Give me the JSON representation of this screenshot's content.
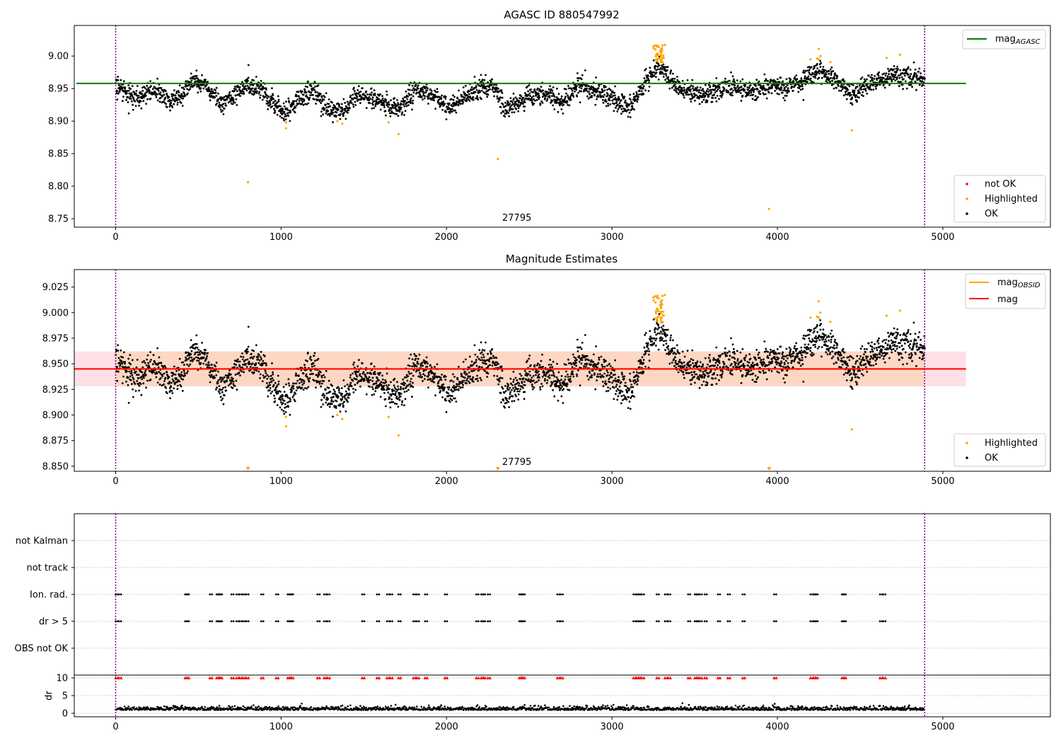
{
  "colors": {
    "ok": "#000000",
    "highlighted": "#ffa500",
    "not_ok": "#ff0000",
    "mag_agasc": "#008000",
    "mag_obsid": "#ffa500",
    "mag": "#ff0000",
    "band_outer": "#ffe0e6",
    "band_inner": "#fdd7c3",
    "obs_boundary": "#800080"
  },
  "chart_data": [
    {
      "type": "scatter",
      "title": "AGASC ID 880547992",
      "xlim": [
        -250,
        5650
      ],
      "ylim": [
        8.737,
        9.047
      ],
      "xticks": [
        0,
        1000,
        2000,
        3000,
        4000,
        5000
      ],
      "xtick_labels": [
        "0",
        "1000",
        "2000",
        "3000",
        "4000",
        "5000"
      ],
      "yticks": [
        8.75,
        8.8,
        8.85,
        8.9,
        8.95,
        9.0
      ],
      "ytick_labels": [
        "8.75",
        "8.80",
        "8.85",
        "8.90",
        "8.95",
        "9.00"
      ],
      "mag_agasc": 8.958,
      "obs_boundaries": [
        0,
        4890
      ],
      "obsid_annotation": {
        "text": "27795",
        "x": 2350,
        "y": 8.745
      },
      "legend_top": [
        {
          "label": "mag",
          "sub": "AGASC",
          "color": "#008000"
        }
      ],
      "legend_bottom": [
        {
          "label": "not OK",
          "color": "#ff0000"
        },
        {
          "label": "Highlighted",
          "color": "#ffa500"
        },
        {
          "label": "OK",
          "color": "#000000"
        }
      ],
      "trend": [
        [
          0,
          8.955
        ],
        [
          60,
          8.945
        ],
        [
          150,
          8.935
        ],
        [
          230,
          8.95
        ],
        [
          320,
          8.93
        ],
        [
          400,
          8.94
        ],
        [
          480,
          8.962
        ],
        [
          560,
          8.95
        ],
        [
          640,
          8.928
        ],
        [
          720,
          8.94
        ],
        [
          800,
          8.957
        ],
        [
          880,
          8.945
        ],
        [
          960,
          8.928
        ],
        [
          1020,
          8.91
        ],
        [
          1100,
          8.932
        ],
        [
          1200,
          8.948
        ],
        [
          1280,
          8.92
        ],
        [
          1380,
          8.915
        ],
        [
          1450,
          8.94
        ],
        [
          1560,
          8.935
        ],
        [
          1640,
          8.925
        ],
        [
          1720,
          8.918
        ],
        [
          1820,
          8.95
        ],
        [
          1920,
          8.94
        ],
        [
          2000,
          8.92
        ],
        [
          2080,
          8.932
        ],
        [
          2200,
          8.948
        ],
        [
          2280,
          8.96
        ],
        [
          2350,
          8.918
        ],
        [
          2420,
          8.925
        ],
        [
          2500,
          8.94
        ],
        [
          2600,
          8.94
        ],
        [
          2700,
          8.928
        ],
        [
          2800,
          8.955
        ],
        [
          2900,
          8.945
        ],
        [
          3000,
          8.938
        ],
        [
          3100,
          8.92
        ],
        [
          3200,
          8.958
        ],
        [
          3280,
          8.985
        ],
        [
          3350,
          8.965
        ],
        [
          3450,
          8.945
        ],
        [
          3550,
          8.94
        ],
        [
          3650,
          8.95
        ],
        [
          3750,
          8.952
        ],
        [
          3850,
          8.948
        ],
        [
          3950,
          8.955
        ],
        [
          4050,
          8.95
        ],
        [
          4150,
          8.962
        ],
        [
          4250,
          8.978
        ],
        [
          4350,
          8.965
        ],
        [
          4450,
          8.94
        ],
        [
          4550,
          8.955
        ],
        [
          4700,
          8.97
        ],
        [
          4890,
          8.965
        ]
      ],
      "highlighted_cluster": {
        "x": [
          3250,
          3320
        ],
        "y": [
          8.99,
          9.018
        ]
      },
      "highlighted_points": [
        [
          800,
          8.806
        ],
        [
          1030,
          8.898
        ],
        [
          1030,
          8.889
        ],
        [
          1340,
          8.9
        ],
        [
          1370,
          8.896
        ],
        [
          1650,
          8.898
        ],
        [
          1710,
          8.88
        ],
        [
          2310,
          8.842
        ],
        [
          3950,
          8.765
        ],
        [
          4200,
          8.995
        ],
        [
          4240,
          8.996
        ],
        [
          4250,
          9.011
        ],
        [
          4260,
          9.0
        ],
        [
          4250,
          8.995
        ],
        [
          4320,
          8.991
        ],
        [
          4450,
          8.886
        ],
        [
          4660,
          8.997
        ],
        [
          4740,
          9.002
        ]
      ]
    },
    {
      "type": "scatter",
      "title": "Magnitude Estimates",
      "xlim": [
        -250,
        5650
      ],
      "ylim": [
        8.845,
        9.042
      ],
      "xticks": [
        0,
        1000,
        2000,
        3000,
        4000,
        5000
      ],
      "xtick_labels": [
        "0",
        "1000",
        "2000",
        "3000",
        "4000",
        "5000"
      ],
      "yticks": [
        8.85,
        8.875,
        8.9,
        8.925,
        8.95,
        8.975,
        9.0,
        9.025
      ],
      "ytick_labels": [
        "8.850",
        "8.875",
        "8.900",
        "8.925",
        "8.950",
        "8.975",
        "9.000",
        "9.025"
      ],
      "mag": 8.945,
      "mag_band": [
        8.928,
        8.962
      ],
      "mag_obsid": 8.945,
      "obs_boundaries": [
        0,
        4890
      ],
      "obsid_annotation": {
        "text": "27795",
        "x": 2350,
        "y": 8.849
      },
      "clipped_markers_x": [
        800,
        2310,
        3950
      ],
      "legend_top": [
        {
          "label": "mag",
          "sub": "OBSID",
          "color": "#ffa500"
        },
        {
          "label": "mag",
          "sub": "",
          "color": "#ff0000"
        }
      ],
      "legend_bottom": [
        {
          "label": "Highlighted",
          "color": "#ffa500"
        },
        {
          "label": "OK",
          "color": "#000000"
        }
      ]
    },
    {
      "type": "scatter",
      "title": "",
      "xlim": [
        -250,
        5650
      ],
      "flag_rows": [
        "not Kalman",
        "not track",
        "Ion. rad.",
        "dr > 5",
        "OBS not OK"
      ],
      "flag_x": [
        0,
        20,
        420,
        430,
        570,
        610,
        620,
        630,
        700,
        730,
        750,
        770,
        790,
        880,
        970,
        1040,
        1050,
        1060,
        1220,
        1260,
        1280,
        1490,
        1580,
        1640,
        1660,
        1710,
        1800,
        1820,
        1870,
        1990,
        2180,
        2210,
        2220,
        2250,
        2440,
        2450,
        2460,
        2670,
        2690,
        3130,
        3150,
        3160,
        3180,
        3270,
        3320,
        3340,
        3460,
        3500,
        3510,
        3530,
        3560,
        3640,
        3700,
        3790,
        3980,
        4200,
        4220,
        4230,
        4390,
        4400,
        4620,
        4640
      ],
      "flag_rows_set": [
        "Ion. rad.",
        "dr > 5"
      ],
      "dr_threshold_markers_y": 10,
      "dr_yticks": [
        0,
        5,
        10
      ],
      "dr_ytick_labels": [
        "0",
        "5",
        "10"
      ],
      "dr_ylim": [
        -1,
        10.8
      ],
      "dr_ylabel": "dr",
      "obs_boundaries": [
        0,
        4890
      ]
    }
  ]
}
